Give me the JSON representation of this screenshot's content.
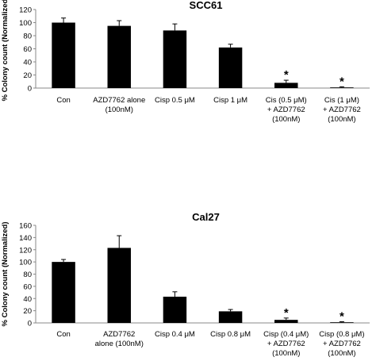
{
  "chart_data": [
    {
      "type": "bar",
      "title": "SCC61",
      "ylabel": "% Colony count (Normalized)",
      "xlabel": "",
      "ylim": [
        0,
        120
      ],
      "yticks": [
        "0",
        "20",
        "40",
        "60",
        "80",
        "100",
        "120"
      ],
      "categories": [
        [
          "Con"
        ],
        [
          "AZD7762 alone",
          "(100nM)"
        ],
        [
          "Cisp 0.5 μM"
        ],
        [
          "Cisp 1 μM"
        ],
        [
          "Cis (0.5 μM)",
          "+ AZD7762",
          "(100nM)"
        ],
        [
          "Cis (1 μM)",
          "+ AZD7762",
          "(100nM)"
        ]
      ],
      "values": [
        100,
        95,
        88,
        62,
        8,
        1
      ],
      "errors": [
        7,
        8,
        10,
        5,
        4,
        1
      ],
      "significance": [
        "",
        "",
        "",
        "",
        "*",
        "*"
      ],
      "bar_color": "#000000"
    },
    {
      "type": "bar",
      "title": "Cal27",
      "ylabel": "% Colony count (Normalized)",
      "xlabel": "",
      "ylim": [
        0,
        160
      ],
      "yticks": [
        "0",
        "20",
        "40",
        "60",
        "80",
        "100",
        "120",
        "140",
        "160"
      ],
      "categories": [
        [
          "Con"
        ],
        [
          "AZD7762",
          "alone (100nM)"
        ],
        [
          "Cisp 0.4 μM"
        ],
        [
          "Cisp 0.8 μM"
        ],
        [
          "Cisp (0.4 μM)",
          "+ AZD7762",
          "(100nM)"
        ],
        [
          "Cisp (0.8 μM)",
          "+ AZD7762",
          "(100nM)"
        ]
      ],
      "values": [
        100,
        123,
        43,
        19,
        5,
        1
      ],
      "errors": [
        4,
        20,
        8,
        3,
        3,
        1
      ],
      "significance": [
        "",
        "",
        "",
        "",
        "*",
        "*"
      ],
      "bar_color": "#000000"
    }
  ]
}
